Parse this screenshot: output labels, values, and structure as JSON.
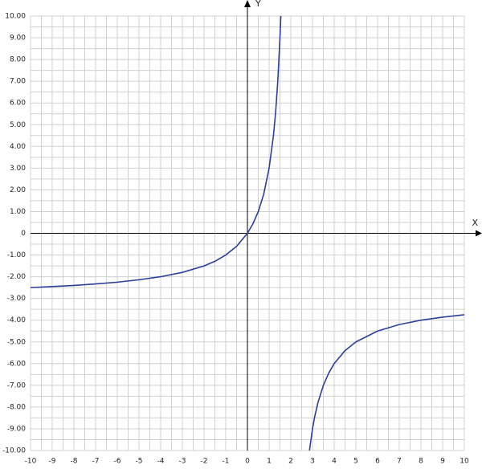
{
  "chart_data": {
    "type": "line",
    "x_label": "X",
    "y_label": "Y",
    "xlim": [
      -10,
      10
    ],
    "ylim": [
      -10,
      10
    ],
    "xticks": [
      -10,
      -9,
      -8,
      -7,
      -6,
      -5,
      -4,
      -3,
      -2,
      -1,
      0,
      1,
      2,
      3,
      4,
      5,
      6,
      7,
      8,
      9,
      10
    ],
    "yticks": [
      {
        "value": 10,
        "label": "10.00"
      },
      {
        "value": 9,
        "label": "9.00"
      },
      {
        "value": 8,
        "label": "8.00"
      },
      {
        "value": 7,
        "label": "7.00"
      },
      {
        "value": 6,
        "label": "6.00"
      },
      {
        "value": 5,
        "label": "5.00"
      },
      {
        "value": 4,
        "label": "4.00"
      },
      {
        "value": 3,
        "label": "3.00"
      },
      {
        "value": 2,
        "label": "2.00"
      },
      {
        "value": 1,
        "label": "1.00"
      },
      0,
      {
        "value": -1,
        "label": "-1.00"
      },
      {
        "value": -2,
        "label": "-2.00"
      },
      {
        "value": -3,
        "label": "-3.00"
      },
      {
        "value": -4,
        "label": "-4.00"
      },
      {
        "value": -5,
        "label": "-5.00"
      },
      {
        "value": -6,
        "label": "-6.00"
      },
      {
        "value": -7,
        "label": "-7.00"
      },
      {
        "value": -8,
        "label": "-8.00"
      },
      {
        "value": -9,
        "label": "-9.00"
      },
      {
        "value": -10,
        "label": "-10.00"
      }
    ],
    "grid": true,
    "x": [
      -10,
      -9,
      -8,
      -7,
      -6,
      -5,
      -4,
      -3,
      -2,
      -1.5,
      -1,
      -0.5,
      0,
      0.25,
      0.5,
      0.75,
      1,
      1.2,
      1.3,
      1.4,
      1.5,
      1.54,
      2,
      2.86,
      3,
      3.1,
      3.25,
      3.5,
      3.75,
      4,
      4.5,
      5,
      6,
      7,
      8,
      9,
      10
    ],
    "series": [
      {
        "color": "#2b3f9f",
        "values": [
          -2.5,
          -2.45,
          -2.4,
          -2.33,
          -2.25,
          -2.14,
          -2,
          -1.8,
          -1.5,
          -1.29,
          -1,
          -0.6,
          0,
          0.43,
          1,
          1.8,
          3,
          4.5,
          5.57,
          7,
          9,
          10,
          null,
          -10,
          -9,
          -8.45,
          -7.8,
          -7,
          -6.43,
          -6,
          -5.4,
          -5,
          -4.5,
          -4.2,
          -4,
          -3.86,
          -3.75
        ]
      }
    ]
  }
}
